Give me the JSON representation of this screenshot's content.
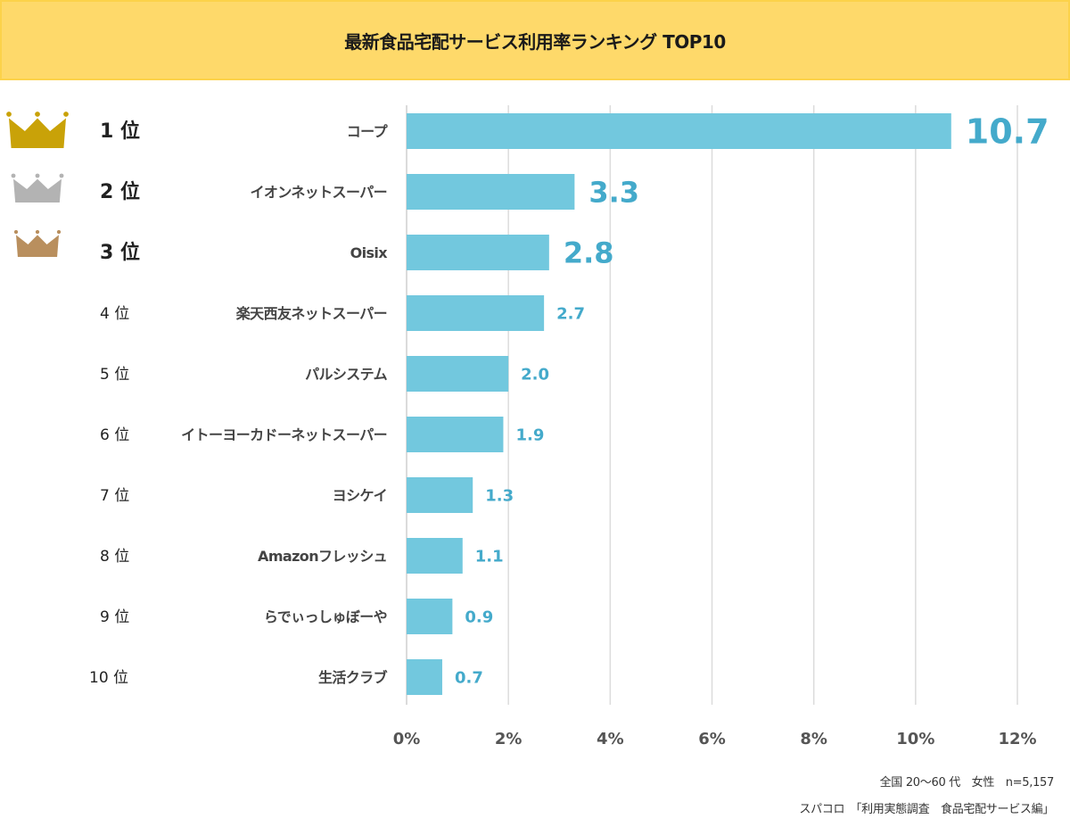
{
  "title": "最新食品宅配サービス利用率ランキング TOP10",
  "colors": {
    "banner": "#fed96a",
    "bar": "#72c8de",
    "value_text": "#44aacb",
    "crown_gold": "#c9a208",
    "crown_silver": "#b3b3b3",
    "crown_bronze": "#b98f5e"
  },
  "footnote": {
    "line1": "全国 20～60 代　女性　n=5,157",
    "line2": "スパコロ　「利用実態調査　食品宅配サービス編」"
  },
  "chart_data": {
    "type": "bar",
    "orientation": "horizontal",
    "title": "最新食品宅配サービス利用率ランキング TOP10",
    "xlabel": "",
    "ylabel": "",
    "xlim": [
      0,
      12
    ],
    "x_ticks": [
      0,
      2,
      4,
      6,
      8,
      10,
      12
    ],
    "x_tick_labels": [
      "0%",
      "2%",
      "4%",
      "6%",
      "8%",
      "10%",
      "12%"
    ],
    "grid": true,
    "unit": "%",
    "ranks": [
      "1 位",
      "2 位",
      "3 位",
      "4 位",
      "5 位",
      "6 位",
      "7 位",
      "8 位",
      "9 位",
      "10 位"
    ],
    "crowns": [
      "gold",
      "silver",
      "bronze"
    ],
    "categories": [
      "コープ",
      "イオンネットスーパー",
      "Oisix",
      "楽天西友ネットスーパー",
      "パルシステム",
      "イトーヨーカドーネットスーパー",
      "ヨシケイ",
      "Amazonフレッシュ",
      "らでぃっしゅぼーや",
      "生活クラブ"
    ],
    "values": [
      10.7,
      3.3,
      2.8,
      2.7,
      2.0,
      1.9,
      1.3,
      1.1,
      0.9,
      0.7
    ],
    "value_labels": [
      "10.7",
      "3.3",
      "2.8",
      "2.7",
      "2.0",
      "1.9",
      "1.3",
      "1.1",
      "0.9",
      "0.7"
    ]
  }
}
